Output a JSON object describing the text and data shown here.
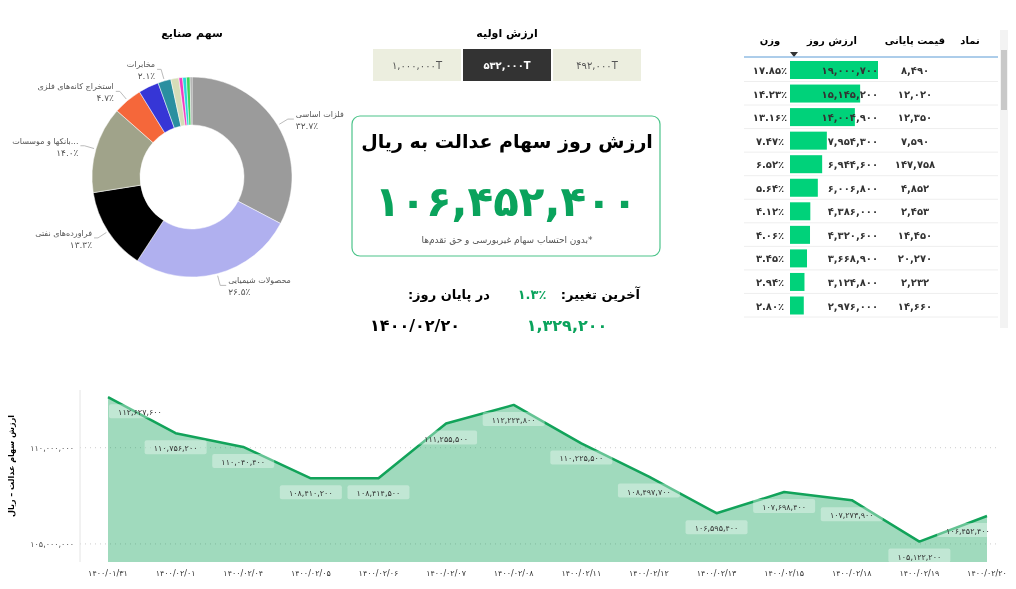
{
  "chart_data": [
    {
      "type": "donut",
      "title": "سهم صنایع",
      "categories": [
        "فلزات اساسی",
        "محصولات شیمیایی",
        "فراورده‌های نفتی",
        "...بانکها و موسسات",
        "استخراج کانه‌های فلزی",
        null,
        "مخابرات",
        null,
        null,
        null,
        null,
        null
      ],
      "values": [
        32.7,
        26.5,
        13.3,
        14.0,
        4.7,
        3.3,
        2.1,
        1.3,
        0.6,
        0.6,
        0.6,
        0.3
      ],
      "value_labels": [
        "۳۲.۷٪",
        "۲۶.۵٪",
        "۱۳.۳٪",
        "۱۴.۰٪",
        "۴.۷٪",
        null,
        "۲.۱٪",
        null,
        null,
        null,
        null,
        null
      ],
      "colors": [
        "#9b9b9b",
        "#b0b0ef",
        "#000000",
        "#a0a38a",
        "#f5673a",
        "#3636d6",
        "#2a8fa0",
        "#d6dcb8",
        "#f03cc0",
        "#27d9d9",
        "#3ad45a",
        "#a0a0a0"
      ]
    },
    {
      "type": "other",
      "title": "ارزش روز سهام عدالت به ریال",
      "annotations": [
        "ارزش اولیه",
        "۱,۰۰۰,۰۰۰T",
        "۵۳۲,۰۰۰T",
        "۴۹۲,۰۰۰T",
        "۱۰۶,۴۵۲,۴۰۰",
        "*بدون احتساب سهام غیربورسی و حق تقدم‌ها",
        "آخرین تغییر:",
        "۱.۳٪",
        "در پایان روز:",
        "۱,۳۲۹,۲۰۰",
        "۱۴۰۰/۰۲/۲۰"
      ]
    },
    {
      "type": "bar",
      "orientation": "horizontal",
      "color": "#00d27a",
      "categories": [
        null,
        null,
        null,
        null,
        null,
        null,
        null,
        null,
        null,
        null,
        null
      ],
      "values": [
        19000700,
        15145200,
        14004900,
        7954300,
        6944600,
        6006800,
        4386000,
        4320600,
        3668900,
        3124800,
        2976000
      ],
      "value_labels": [
        "۱۹,۰۰۰,۷۰۰",
        "۱۵,۱۴۵,۲۰۰",
        "۱۴,۰۰۴,۹۰۰",
        "۷,۹۵۴,۳۰۰",
        "۶,۹۴۴,۶۰۰",
        "۶,۰۰۶,۸۰۰",
        "۴,۳۸۶,۰۰۰",
        "۴,۳۲۰,۶۰۰",
        "۳,۶۶۸,۹۰۰",
        "۳,۱۲۴,۸۰۰",
        "۲,۹۷۶,۰۰۰"
      ],
      "annotations": [
        "نماد",
        "قیمت پایانی",
        "ارزش روز",
        "وزن",
        "۸,۴۹۰",
        "۱۲,۰۲۰",
        "۱۲,۳۵۰",
        "۷,۵۹۰",
        "۱۴۷,۷۵۸",
        "۴,۸۵۲",
        "۲,۴۵۳",
        "۱۴,۴۵۰",
        "۲۰,۲۷۰",
        "۲,۲۳۲",
        "۱۴,۶۶۰",
        "۱۷.۸۵٪",
        "۱۴.۲۳٪",
        "۱۳.۱۶٪",
        "۷.۴۷٪",
        "۶.۵۲٪",
        "۵.۶۴٪",
        "۴.۱۲٪",
        "۴.۰۶٪",
        "۳.۴۵٪",
        "۲.۹۴٪",
        "۲.۸۰٪"
      ]
    },
    {
      "type": "area",
      "ylabel": "ارزش سهام عدالت – ریال",
      "color": "#12a35a",
      "grid": "y",
      "categories": [
        "۱۴۰۰/۰۱/۳۱",
        "۱۴۰۰/۰۲/۰۱",
        "۱۴۰۰/۰۲/۰۴",
        "۱۴۰۰/۰۲/۰۵",
        "۱۴۰۰/۰۲/۰۶",
        "۱۴۰۰/۰۲/۰۷",
        "۱۴۰۰/۰۲/۰۸",
        "۱۴۰۰/۰۲/۱۱",
        "۱۴۰۰/۰۲/۱۲",
        "۱۴۰۰/۰۲/۱۳",
        "۱۴۰۰/۰۲/۱۵",
        "۱۴۰۰/۰۲/۱۸",
        "۱۴۰۰/۰۲/۱۹",
        "۱۴۰۰/۰۲/۲۰"
      ],
      "values": [
        112627600,
        110756200,
        110040400,
        108410200,
        108414500,
        111255500,
        112224800,
        110225500,
        108497700,
        106595400,
        107698400,
        107273900,
        105122200,
        106452400
      ],
      "value_labels": [
        "۱۱۲,۶۲۷,۶۰۰",
        "۱۱۰,۷۵۶,۲۰۰",
        "۱۱۰,۰۴۰,۴۰۰",
        "۱۰۸,۴۱۰,۲۰۰",
        "۱۰۸,۴۱۴,۵۰۰",
        "۱۱۱,۲۵۵,۵۰۰",
        "۱۱۲,۲۲۴,۸۰۰",
        "۱۱۰,۲۲۵,۵۰۰",
        "۱۰۸,۴۹۷,۷۰۰",
        "۱۰۶,۵۹۵,۴۰۰",
        "۱۰۷,۶۹۸,۴۰۰",
        "۱۰۷,۲۷۳,۹۰۰",
        "۱۰۵,۱۲۲,۲۰۰",
        "۱۰۶,۴۵۲,۴۰۰"
      ],
      "ylim": [
        104060000,
        113000000
      ],
      "yticks": [
        {
          "value": 105000000,
          "label": "۱۰۵,۰۰۰,۰۰۰"
        },
        {
          "value": 110000000,
          "label": "۱۱۰,۰۰۰,۰۰۰"
        }
      ]
    }
  ]
}
